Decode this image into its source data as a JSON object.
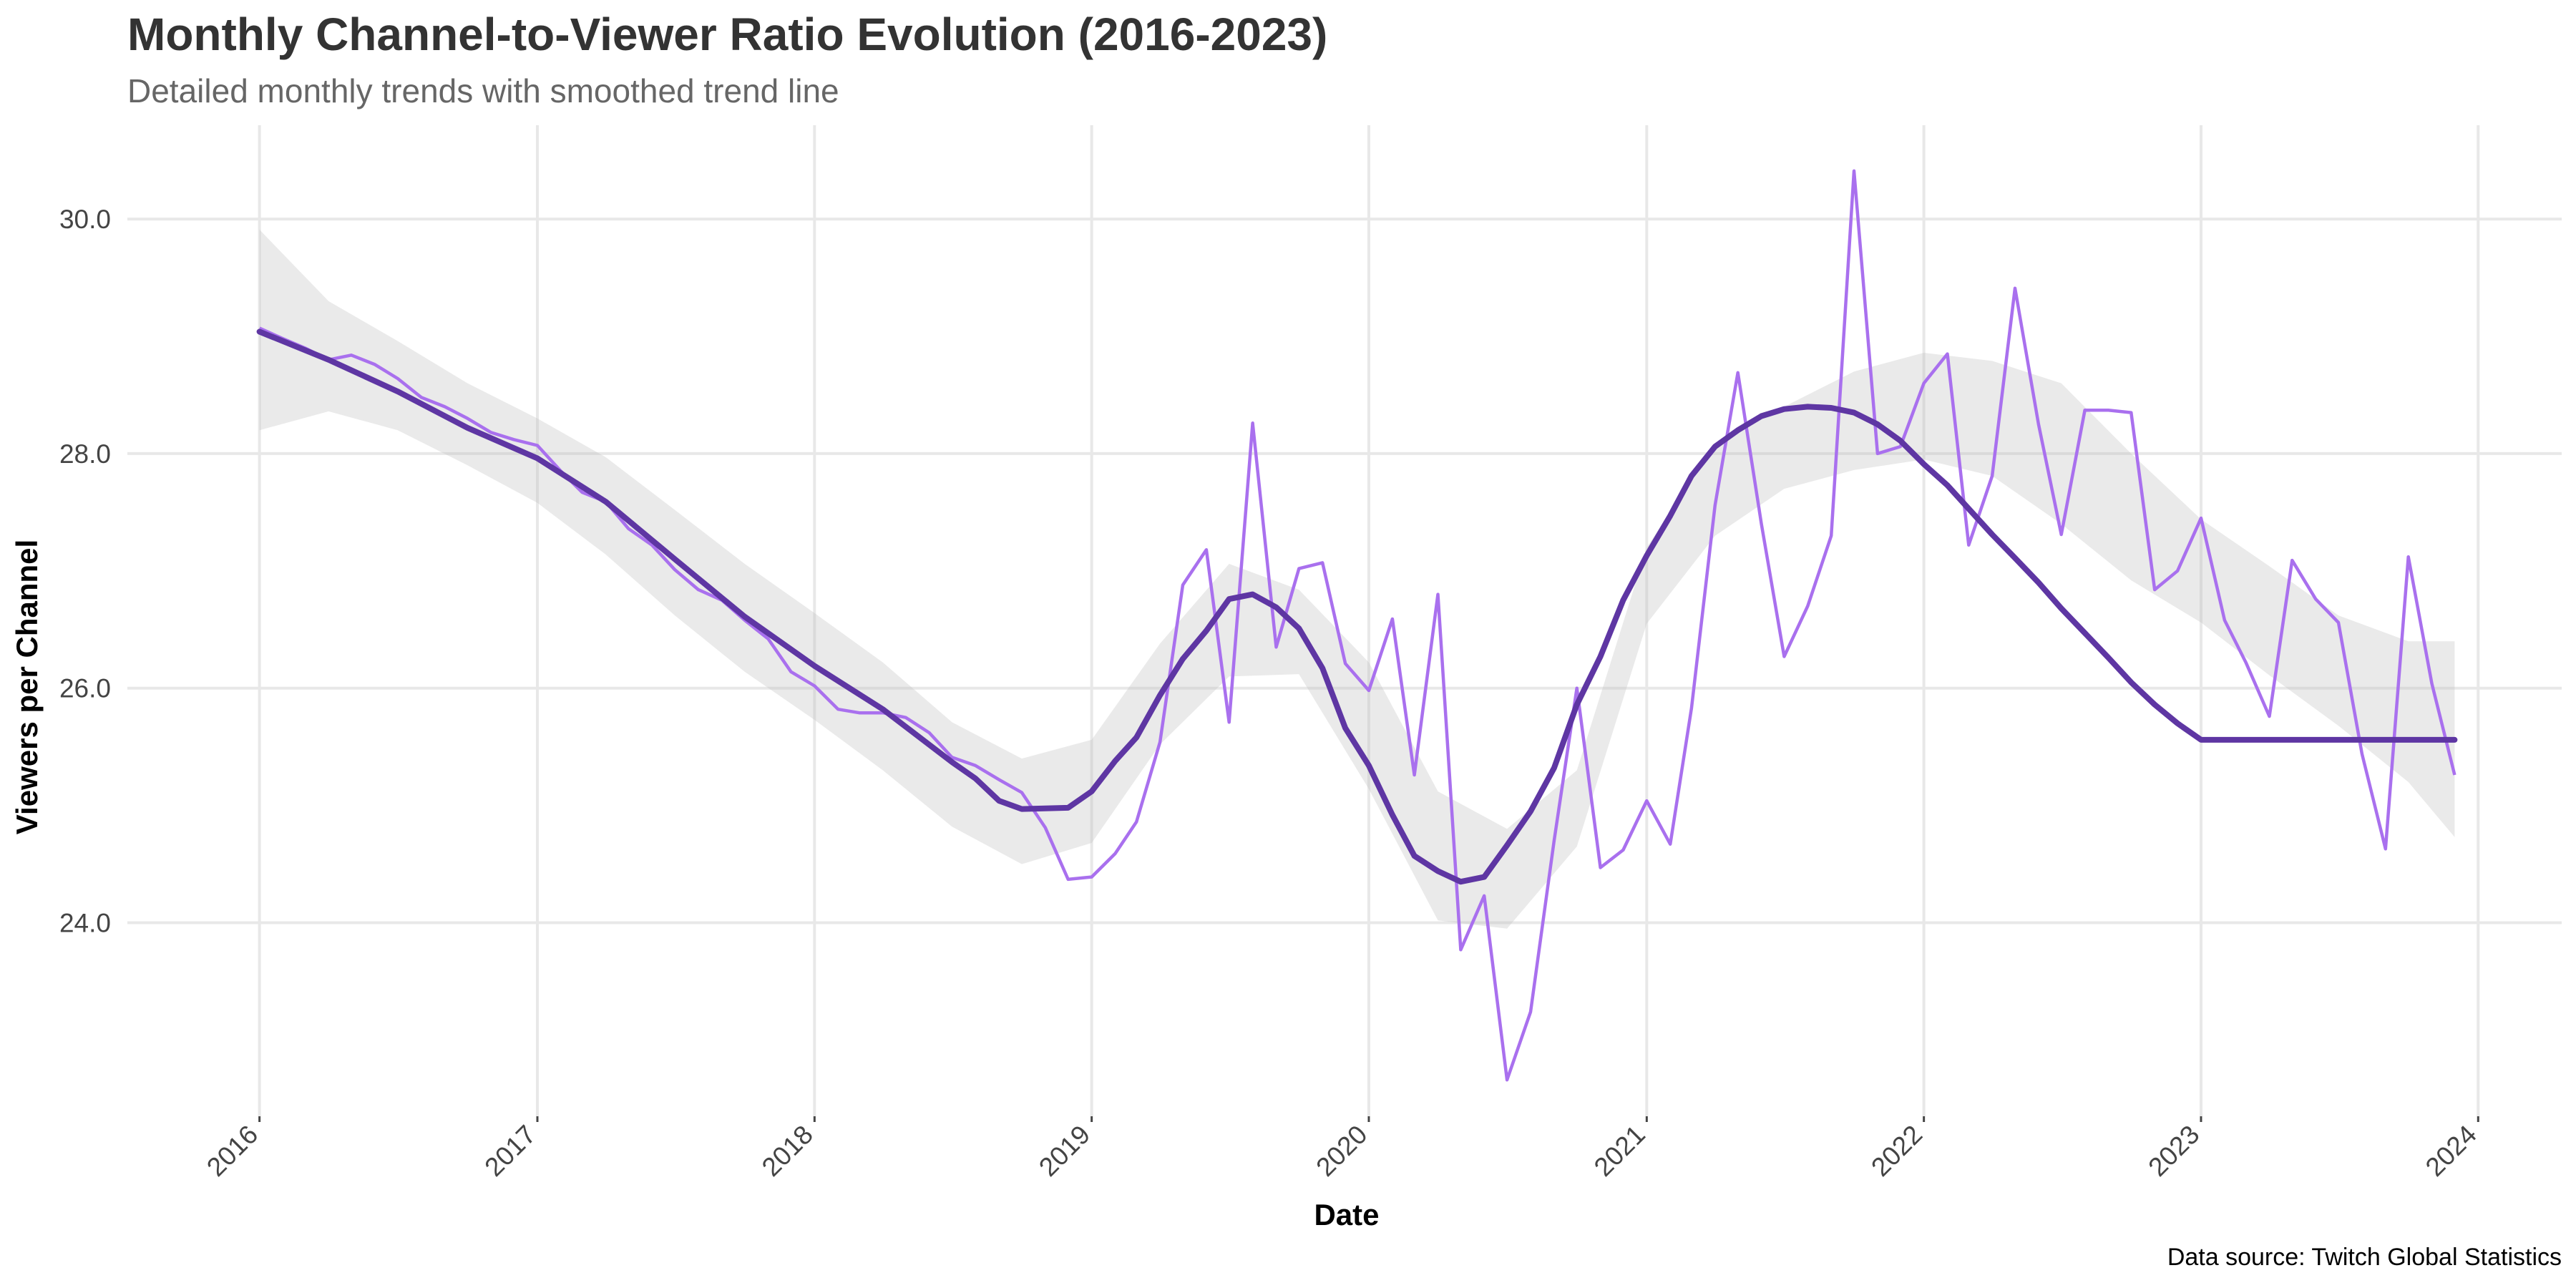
{
  "chart_data": {
    "type": "line",
    "title": "Monthly Channel-to-Viewer Ratio Evolution (2016-2023)",
    "subtitle": "Detailed monthly trends with smoothed trend line",
    "xlabel": "Date",
    "ylabel": "Viewers per Channel",
    "caption": "Data source: Twitch Global Statistics",
    "x_tick_labels": [
      "2016",
      "2017",
      "2018",
      "2019",
      "2020",
      "2021",
      "2022",
      "2023",
      "2024"
    ],
    "y_ticks": [
      24.0,
      26.0,
      28.0,
      30.0
    ],
    "y_tick_labels": [
      "24.0",
      "26.0",
      "28.0",
      "30.0"
    ],
    "ylim": [
      22.35,
      30.8
    ],
    "xlim": [
      "2015-07-11",
      "2024-04-20"
    ],
    "grid": true,
    "legend": "none",
    "colors": {
      "raw": "#a970ee",
      "trend": "#5e36a3",
      "ribbon": "#bdbdbd",
      "grid": "#e8e8e8"
    },
    "series": [
      {
        "role": "monthly values",
        "x": [
          "2016-01",
          "2016-02",
          "2016-03",
          "2016-04",
          "2016-05",
          "2016-06",
          "2016-07",
          "2016-08",
          "2016-09",
          "2016-10",
          "2016-11",
          "2016-12",
          "2017-01",
          "2017-02",
          "2017-03",
          "2017-04",
          "2017-05",
          "2017-06",
          "2017-07",
          "2017-08",
          "2017-09",
          "2017-10",
          "2017-11",
          "2017-12",
          "2018-01",
          "2018-02",
          "2018-03",
          "2018-04",
          "2018-05",
          "2018-06",
          "2018-07",
          "2018-08",
          "2018-09",
          "2018-10",
          "2018-11",
          "2018-12",
          "2019-01",
          "2019-02",
          "2019-03",
          "2019-04",
          "2019-05",
          "2019-06",
          "2019-07",
          "2019-08",
          "2019-09",
          "2019-10",
          "2019-11",
          "2019-12",
          "2020-01",
          "2020-02",
          "2020-03",
          "2020-04",
          "2020-05",
          "2020-06",
          "2020-07",
          "2020-08",
          "2020-09",
          "2020-10",
          "2020-11",
          "2020-12",
          "2021-01",
          "2021-02",
          "2021-03",
          "2021-04",
          "2021-05",
          "2021-06",
          "2021-07",
          "2021-08",
          "2021-09",
          "2021-10",
          "2021-11",
          "2021-12",
          "2022-01",
          "2022-02",
          "2022-03",
          "2022-04",
          "2022-05",
          "2022-06",
          "2022-07",
          "2022-08",
          "2022-09",
          "2022-10",
          "2022-11",
          "2022-12",
          "2023-01",
          "2023-02",
          "2023-03",
          "2023-04",
          "2023-05",
          "2023-06",
          "2023-07",
          "2023-08",
          "2023-09",
          "2023-10",
          "2023-11",
          "2023-12"
        ],
        "values": [
          29.07,
          28.98,
          28.9,
          28.8,
          28.84,
          28.76,
          28.64,
          28.48,
          28.4,
          28.3,
          28.18,
          28.12,
          28.07,
          27.85,
          27.67,
          27.59,
          27.36,
          27.22,
          27.01,
          26.84,
          26.75,
          26.58,
          26.42,
          26.14,
          26.02,
          25.82,
          25.79,
          25.79,
          25.75,
          25.62,
          25.41,
          25.34,
          25.22,
          25.11,
          24.81,
          24.37,
          24.39,
          24.59,
          24.86,
          25.54,
          26.88,
          27.18,
          25.71,
          28.26,
          26.35,
          27.02,
          27.07,
          26.21,
          25.98,
          26.59,
          25.26,
          26.8,
          23.77,
          24.23,
          22.66,
          23.24,
          24.7,
          26.0,
          24.47,
          24.62,
          25.04,
          24.67,
          25.83,
          27.56,
          28.69,
          27.4,
          26.27,
          26.7,
          27.3,
          30.41,
          28.0,
          28.06,
          28.6,
          28.85,
          27.22,
          27.81,
          29.41,
          28.25,
          27.31,
          28.37,
          28.37,
          28.35,
          26.84,
          27.0,
          27.45,
          26.58,
          26.22,
          25.76,
          27.09,
          26.76,
          26.56,
          25.44,
          24.63,
          27.12,
          26.04,
          25.26
        ]
      },
      {
        "role": "smoothed trend",
        "x": [
          "2016-01",
          "2016-04",
          "2016-07",
          "2016-10",
          "2017-01",
          "2017-04",
          "2017-07",
          "2017-10",
          "2018-01",
          "2018-04",
          "2018-07",
          "2018-08",
          "2018-09",
          "2018-10",
          "2018-12",
          "2019-01",
          "2019-02",
          "2019-03",
          "2019-04",
          "2019-05",
          "2019-06",
          "2019-07",
          "2019-08",
          "2019-09",
          "2019-10",
          "2019-11",
          "2019-12",
          "2020-01",
          "2020-02",
          "2020-03",
          "2020-04",
          "2020-05",
          "2020-06",
          "2020-07",
          "2020-08",
          "2020-09",
          "2020-10",
          "2020-11",
          "2020-12",
          "2021-01",
          "2021-02",
          "2021-03",
          "2021-04",
          "2021-05",
          "2021-06",
          "2021-07",
          "2021-08",
          "2021-09",
          "2021-10",
          "2021-11",
          "2021-12",
          "2022-01",
          "2022-02",
          "2022-03",
          "2022-04",
          "2022-05",
          "2022-06",
          "2022-07",
          "2022-08",
          "2022-09",
          "2022-10",
          "2022-11",
          "2022-12",
          "2023-01",
          "2023-04",
          "2023-07",
          "2023-10",
          "2023-12"
        ],
        "values": [
          29.04,
          28.8,
          28.53,
          28.22,
          27.96,
          27.59,
          27.1,
          26.61,
          26.19,
          25.82,
          25.37,
          25.23,
          25.04,
          24.97,
          24.98,
          25.12,
          25.38,
          25.58,
          25.94,
          26.25,
          26.49,
          26.76,
          26.8,
          26.69,
          26.51,
          26.17,
          25.66,
          25.34,
          24.92,
          24.57,
          24.44,
          24.35,
          24.39,
          24.66,
          24.95,
          25.32,
          25.86,
          26.27,
          26.75,
          27.13,
          27.47,
          27.81,
          28.06,
          28.2,
          28.32,
          28.38,
          28.4,
          28.39,
          28.35,
          28.25,
          28.11,
          27.91,
          27.73,
          27.53,
          27.31,
          27.11,
          26.9,
          26.68,
          26.47,
          26.26,
          26.05,
          25.86,
          25.7,
          25.56,
          25.56,
          25.56,
          25.56,
          25.56
        ],
        "ribbon_x": [
          "2016-01",
          "2016-04",
          "2016-07",
          "2016-10",
          "2017-01",
          "2017-04",
          "2017-07",
          "2017-10",
          "2018-01",
          "2018-04",
          "2018-07",
          "2018-10",
          "2019-01",
          "2019-04",
          "2019-07",
          "2019-10",
          "2020-01",
          "2020-04",
          "2020-07",
          "2020-10",
          "2021-01",
          "2021-04",
          "2021-07",
          "2021-10",
          "2022-01",
          "2022-04",
          "2022-07",
          "2022-10",
          "2023-01",
          "2023-04",
          "2023-07",
          "2023-10",
          "2023-12"
        ],
        "ribbon_low": [
          28.2,
          28.36,
          28.2,
          27.9,
          27.58,
          27.14,
          26.62,
          26.14,
          25.73,
          25.3,
          24.82,
          24.5,
          24.68,
          25.52,
          26.1,
          26.12,
          25.14,
          24.02,
          23.95,
          24.65,
          26.55,
          27.3,
          27.7,
          27.86,
          27.95,
          27.81,
          27.4,
          26.92,
          26.56,
          26.11,
          25.68,
          25.2,
          24.73
        ],
        "ribbon_high": [
          29.91,
          29.3,
          28.96,
          28.6,
          28.3,
          27.97,
          27.52,
          27.06,
          26.64,
          26.22,
          25.71,
          25.4,
          25.56,
          26.38,
          27.06,
          26.84,
          26.22,
          25.12,
          24.8,
          25.3,
          27.2,
          28.08,
          28.4,
          28.7,
          28.86,
          28.79,
          28.6,
          28.0,
          27.44,
          27.04,
          26.62,
          26.4,
          26.4
        ]
      }
    ]
  }
}
